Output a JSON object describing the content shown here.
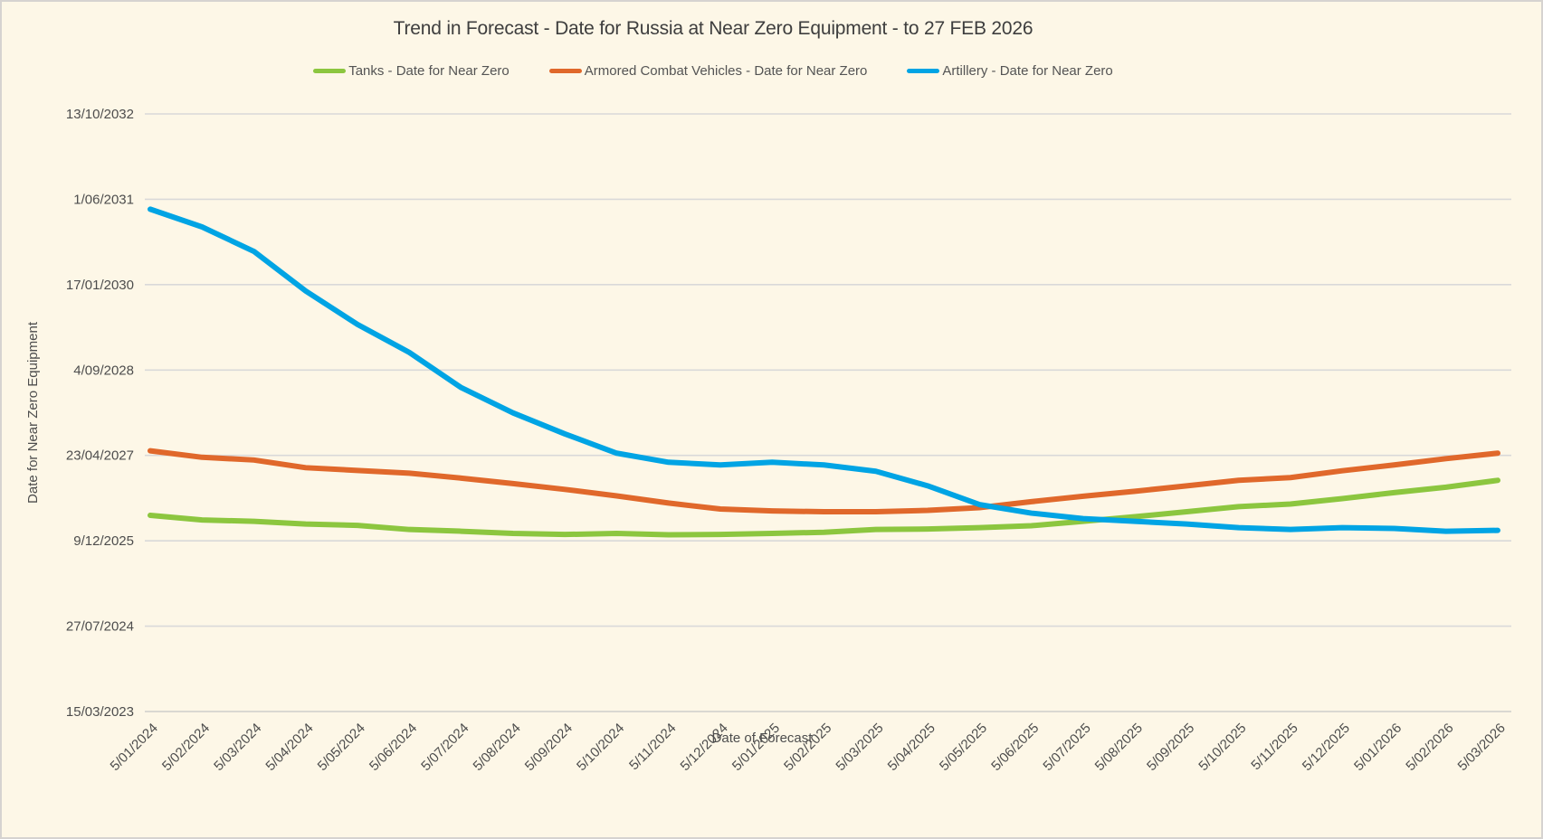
{
  "chart_data": {
    "type": "line",
    "title": "Trend in Forecast - Date for Russia at Near Zero Equipment - to 27 FEB 2026",
    "xlabel": "Date of Forecast",
    "ylabel": "Date for Near Zero Equipment",
    "legend_position": "top",
    "grid": true,
    "background_color": "#fdf7e7",
    "grid_color": "#d9d9d9",
    "axis_line_color": "#cfcdcb",
    "text_color": "#4d4d4d",
    "y_axis": {
      "min": "15/03/2023",
      "max": "13/10/2032",
      "tick_interval_days": 500
    },
    "y_tick_labels": [
      "13/10/2032",
      "1/06/2031",
      "17/01/2030",
      "4/09/2028",
      "23/04/2027",
      "9/12/2025",
      "27/07/2024",
      "15/03/2023"
    ],
    "x_tick_labels": [
      "5/01/2024",
      "5/02/2024",
      "5/03/2024",
      "5/04/2024",
      "5/05/2024",
      "5/06/2024",
      "5/07/2024",
      "5/08/2024",
      "5/09/2024",
      "5/10/2024",
      "5/11/2024",
      "5/12/2024",
      "5/01/2025",
      "5/02/2025",
      "5/03/2025",
      "5/04/2025",
      "5/05/2025",
      "5/06/2025",
      "5/07/2025",
      "5/08/2025",
      "5/09/2025",
      "5/10/2025",
      "5/11/2025",
      "5/12/2025",
      "5/01/2026",
      "5/02/2026",
      "5/03/2026"
    ],
    "series": [
      {
        "name": "Tanks - Date for Near Zero",
        "color": "#8cc63f",
        "values": [
          "7/05/2026",
          "10/04/2026",
          "2/04/2026",
          "17/03/2026",
          "9/03/2026",
          "13/02/2026",
          "3/02/2026",
          "21/01/2026",
          "15/01/2026",
          "21/01/2026",
          "13/01/2026",
          "15/01/2026",
          "21/01/2026",
          "28/01/2026",
          "13/02/2026",
          "16/02/2026",
          "24/02/2026",
          "7/03/2026",
          "2/04/2026",
          "29/04/2026",
          "28/05/2026",
          "27/06/2026",
          "12/07/2026",
          "13/08/2026",
          "17/09/2026",
          "19/10/2026",
          "28/11/2026"
        ]
      },
      {
        "name": "Armored Combat Vehicles - Date for Near Zero",
        "color": "#e0682b",
        "values": [
          "20/05/2027",
          "12/04/2027",
          "27/03/2027",
          "10/02/2027",
          "25/01/2027",
          "9/01/2027",
          "11/12/2026",
          "9/11/2026",
          "6/10/2026",
          "29/08/2026",
          "18/07/2026",
          "13/06/2026",
          "2/06/2026",
          "28/05/2026",
          "28/05/2026",
          "5/06/2026",
          "21/06/2026",
          "26/07/2026",
          "27/08/2026",
          "25/09/2026",
          "27/10/2026",
          "28/11/2026",
          "14/12/2026",
          "23/01/2027",
          "26/02/2027",
          "4/04/2027",
          "6/05/2027"
        ]
      },
      {
        "name": "Artillery - Date for Near Zero",
        "color": "#00a4e4",
        "values": [
          "4/04/2031",
          "21/12/2030",
          "31/07/2030",
          "11/12/2029",
          "29/05/2029",
          "16/12/2028",
          "24/05/2028",
          "28/12/2027",
          "27/08/2027",
          "6/05/2027",
          "14/03/2027",
          "26/02/2027",
          "14/03/2027",
          "26/02/2027",
          "20/01/2027",
          "27/10/2026",
          "9/07/2026",
          "20/05/2026",
          "18/04/2026",
          "2/04/2026",
          "17/03/2026",
          "24/02/2026",
          "13/02/2026",
          "24/02/2026",
          "19/02/2026",
          "3/02/2026",
          "8/02/2026"
        ]
      }
    ]
  }
}
